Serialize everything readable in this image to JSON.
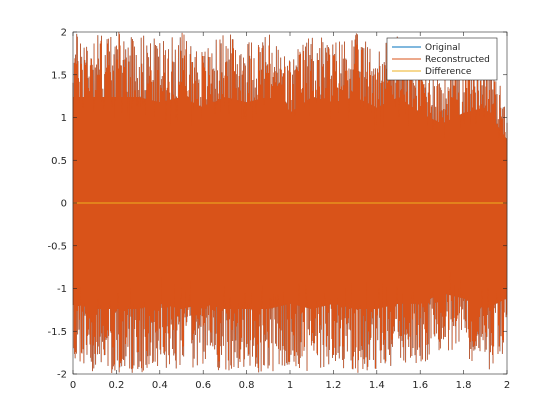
{
  "chart_data": {
    "type": "line",
    "title": "",
    "xlabel": "",
    "ylabel": "",
    "xlim": [
      0,
      2
    ],
    "ylim": [
      -2,
      2
    ],
    "x_ticks": [
      0,
      0.2,
      0.4,
      0.6,
      0.8,
      1,
      1.2,
      1.4,
      1.6,
      1.8,
      2
    ],
    "x_tick_labels": [
      "0",
      "0.2",
      "0.4",
      "0.6",
      "0.8",
      "1",
      "1.2",
      "1.4",
      "1.6",
      "1.8",
      "2"
    ],
    "y_ticks": [
      2,
      1.5,
      1,
      0.5,
      0,
      -0.5,
      -1,
      -1.5,
      -2
    ],
    "y_tick_labels": [
      "2",
      "1.5",
      "1",
      "0.5",
      "0",
      "-0.5",
      "-1",
      "-1.5",
      "-2"
    ],
    "grid": false,
    "legend_position": "top-right",
    "signal_description_note": "",
    "series": [
      {
        "name": "Original",
        "color": "#0072BD",
        "x": [
          0,
          0.1,
          0.2,
          0.3,
          0.4,
          0.5,
          0.6,
          0.7,
          0.8,
          0.9,
          1.0,
          1.1,
          1.2,
          1.3,
          1.4,
          1.5,
          1.6,
          1.7,
          1.8,
          1.9,
          2.0
        ],
        "envelope_max": [
          2.0,
          2.0,
          2.0,
          2.0,
          1.9,
          2.0,
          1.8,
          2.0,
          1.9,
          2.0,
          1.7,
          2.0,
          1.9,
          2.0,
          1.8,
          2.0,
          1.7,
          1.5,
          1.7,
          1.8,
          1.2
        ],
        "envelope_min": [
          -1.9,
          -2.0,
          -2.0,
          -2.0,
          -1.9,
          -2.0,
          -1.9,
          -2.0,
          -2.0,
          -2.0,
          -1.9,
          -2.0,
          -1.9,
          -2.0,
          -2.0,
          -1.9,
          -1.9,
          -1.7,
          -1.8,
          -2.0,
          -1.8
        ]
      },
      {
        "name": "Reconstructed",
        "color": "#D95319",
        "x": [
          0,
          0.1,
          0.2,
          0.3,
          0.4,
          0.5,
          0.6,
          0.7,
          0.8,
          0.9,
          1.0,
          1.1,
          1.2,
          1.3,
          1.4,
          1.5,
          1.6,
          1.7,
          1.8,
          1.9,
          2.0
        ],
        "envelope_max": [
          2.0,
          2.0,
          2.0,
          2.0,
          1.9,
          2.0,
          1.8,
          2.0,
          1.9,
          2.0,
          1.7,
          2.0,
          1.9,
          2.0,
          1.8,
          2.0,
          1.7,
          1.5,
          1.7,
          1.8,
          1.2
        ],
        "envelope_min": [
          -1.9,
          -2.0,
          -2.0,
          -2.0,
          -1.9,
          -2.0,
          -1.9,
          -2.0,
          -2.0,
          -2.0,
          -1.9,
          -2.0,
          -1.9,
          -2.0,
          -2.0,
          -1.9,
          -1.9,
          -1.7,
          -1.8,
          -2.0,
          -1.8
        ]
      },
      {
        "name": "Difference",
        "color": "#EDB120",
        "x": [
          0,
          2
        ],
        "values": [
          0,
          0
        ]
      }
    ]
  }
}
